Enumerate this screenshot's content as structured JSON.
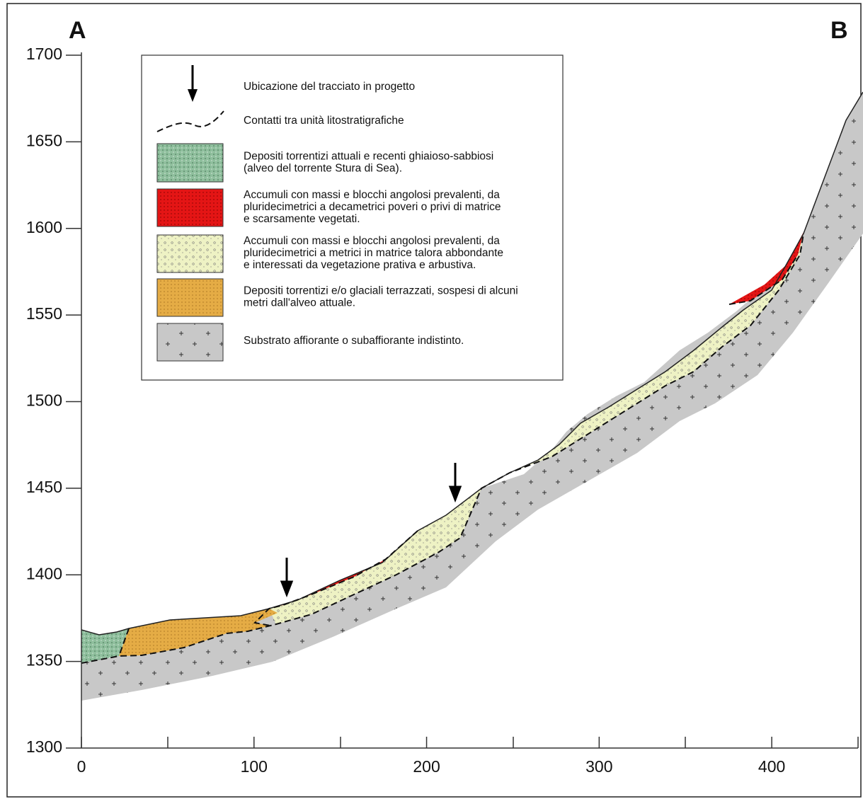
{
  "corner_labels": {
    "left": "A",
    "right": "B"
  },
  "axes": {
    "xlim": [
      0,
      450
    ],
    "ylim": [
      1300,
      1700
    ],
    "xticks": [
      0,
      100,
      200,
      300,
      400
    ],
    "yticks": [
      1300,
      1350,
      1400,
      1450,
      1500,
      1550,
      1600,
      1650,
      1700
    ]
  },
  "legend": [
    {
      "lines": [
        "Ubicazione del tracciato in progetto"
      ]
    },
    {
      "lines": [
        "Contatti tra unità litostratigrafiche"
      ]
    },
    {
      "lines": [
        "Depositi torrentizi attuali e recenti ghiaioso-sabbiosi",
        "(alveo del torrente Stura di Sea)."
      ]
    },
    {
      "lines": [
        "Accumuli con massi e blocchi angolosi prevalenti, da",
        "pluridecimetrici a decametrici poveri o privi di matrice",
        "e scarsamente vegetati."
      ]
    },
    {
      "lines": [
        "Accumuli con massi e blocchi angolosi prevalenti, da",
        "pluridecimetrici a metrici in matrice talora abbondante",
        "e interessati da vegetazione prativa e arbustiva."
      ]
    },
    {
      "lines": [
        "Depositi torrentizi e/o glaciali terrazzati, sospesi di alcuni",
        "metri dall'alveo attuale."
      ]
    },
    {
      "lines": [
        "Substrato affiorante o subaffiorante indistinto."
      ]
    }
  ]
}
